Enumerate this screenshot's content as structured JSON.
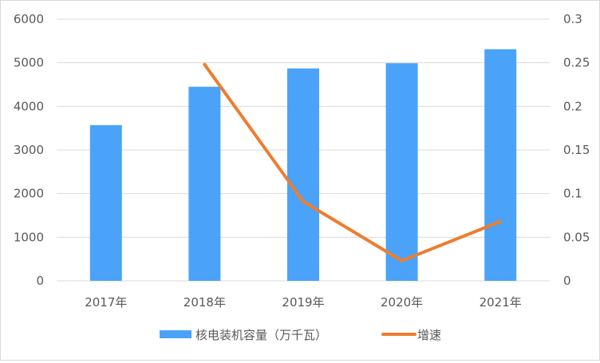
{
  "chart_data": {
    "type": "bar+line",
    "categories": [
      "2017年",
      "2018年",
      "2019年",
      "2020年",
      "2021年"
    ],
    "series": [
      {
        "name": "核电装机容量（万千瓦）",
        "type": "bar",
        "axis": "left",
        "color": "#4aa3f8",
        "values": [
          3570,
          4450,
          4870,
          4990,
          5310
        ]
      },
      {
        "name": "增速",
        "type": "line",
        "axis": "right",
        "color": "#ed7d31",
        "values": [
          null,
          0.248,
          0.091,
          0.023,
          0.068
        ]
      }
    ],
    "left_axis": {
      "ylim": [
        0,
        6000
      ],
      "ticks": [
        "0",
        "1000",
        "2000",
        "3000",
        "4000",
        "5000",
        "6000"
      ]
    },
    "right_axis": {
      "ylim": [
        0,
        0.3
      ],
      "ticks": [
        "0",
        "0.05",
        "0.1",
        "0.15",
        "0.2",
        "0.25",
        "0.3"
      ]
    },
    "grid": true,
    "legend_position": "bottom"
  }
}
